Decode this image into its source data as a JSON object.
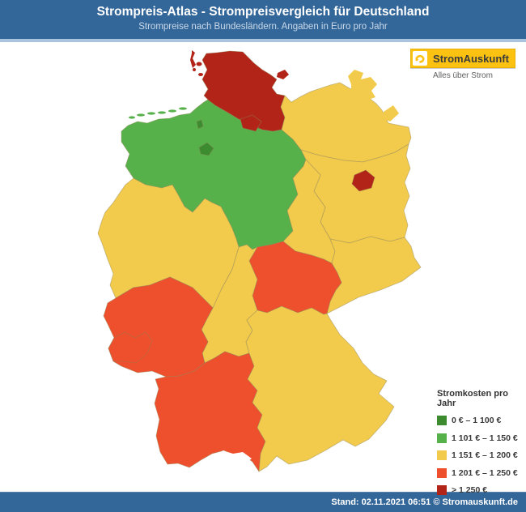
{
  "header": {
    "title": "Strompreis-Atlas - Strompreisvergleich für Deutschland",
    "subtitle": "Strompreise nach Bundesländern. Angaben in Euro pro Jahr"
  },
  "logo": {
    "brand": "StromAuskunft",
    "tagline": "Alles über Strom",
    "brand_color": "#fcc211"
  },
  "legend": {
    "title": "Stromkosten pro Jahr",
    "items": [
      {
        "label": "0 € – 1 100 €",
        "color": "#3c8c2f"
      },
      {
        "label": "1 101 € – 1 150 €",
        "color": "#57b14a"
      },
      {
        "label": "1 151 € – 1 200 €",
        "color": "#f2ca4c"
      },
      {
        "label": "1 201 € – 1 250 €",
        "color": "#ee4f2c"
      },
      {
        "label": "> 1 250 €",
        "color": "#b22318"
      }
    ]
  },
  "map": {
    "states": [
      {
        "id": "schleswig-holstein",
        "name": "Schleswig-Holstein",
        "category": 4
      },
      {
        "id": "hamburg",
        "name": "Hamburg",
        "category": 4
      },
      {
        "id": "mecklenburg-vorpommern",
        "name": "Mecklenburg-Vorpommern",
        "category": 2
      },
      {
        "id": "niedersachsen",
        "name": "Niedersachsen",
        "category": 1
      },
      {
        "id": "bremen",
        "name": "Bremen",
        "category": 0
      },
      {
        "id": "brandenburg",
        "name": "Brandenburg",
        "category": 2
      },
      {
        "id": "berlin",
        "name": "Berlin",
        "category": 4
      },
      {
        "id": "sachsen-anhalt",
        "name": "Sachsen-Anhalt",
        "category": 2
      },
      {
        "id": "sachsen",
        "name": "Sachsen",
        "category": 2
      },
      {
        "id": "thueringen",
        "name": "Thüringen",
        "category": 3
      },
      {
        "id": "hessen",
        "name": "Hessen",
        "category": 2
      },
      {
        "id": "nordrhein-westfalen",
        "name": "Nordrhein-Westfalen",
        "category": 2
      },
      {
        "id": "rheinland-pfalz",
        "name": "Rheinland-Pfalz",
        "category": 3
      },
      {
        "id": "saarland",
        "name": "Saarland",
        "category": 3
      },
      {
        "id": "baden-wuerttemberg",
        "name": "Baden-Württemberg",
        "category": 3
      },
      {
        "id": "bayern",
        "name": "Bayern",
        "category": 2
      }
    ]
  },
  "footer": {
    "text": "Stand: 02.11.2021 06:51 © Stromauskunft.de"
  }
}
